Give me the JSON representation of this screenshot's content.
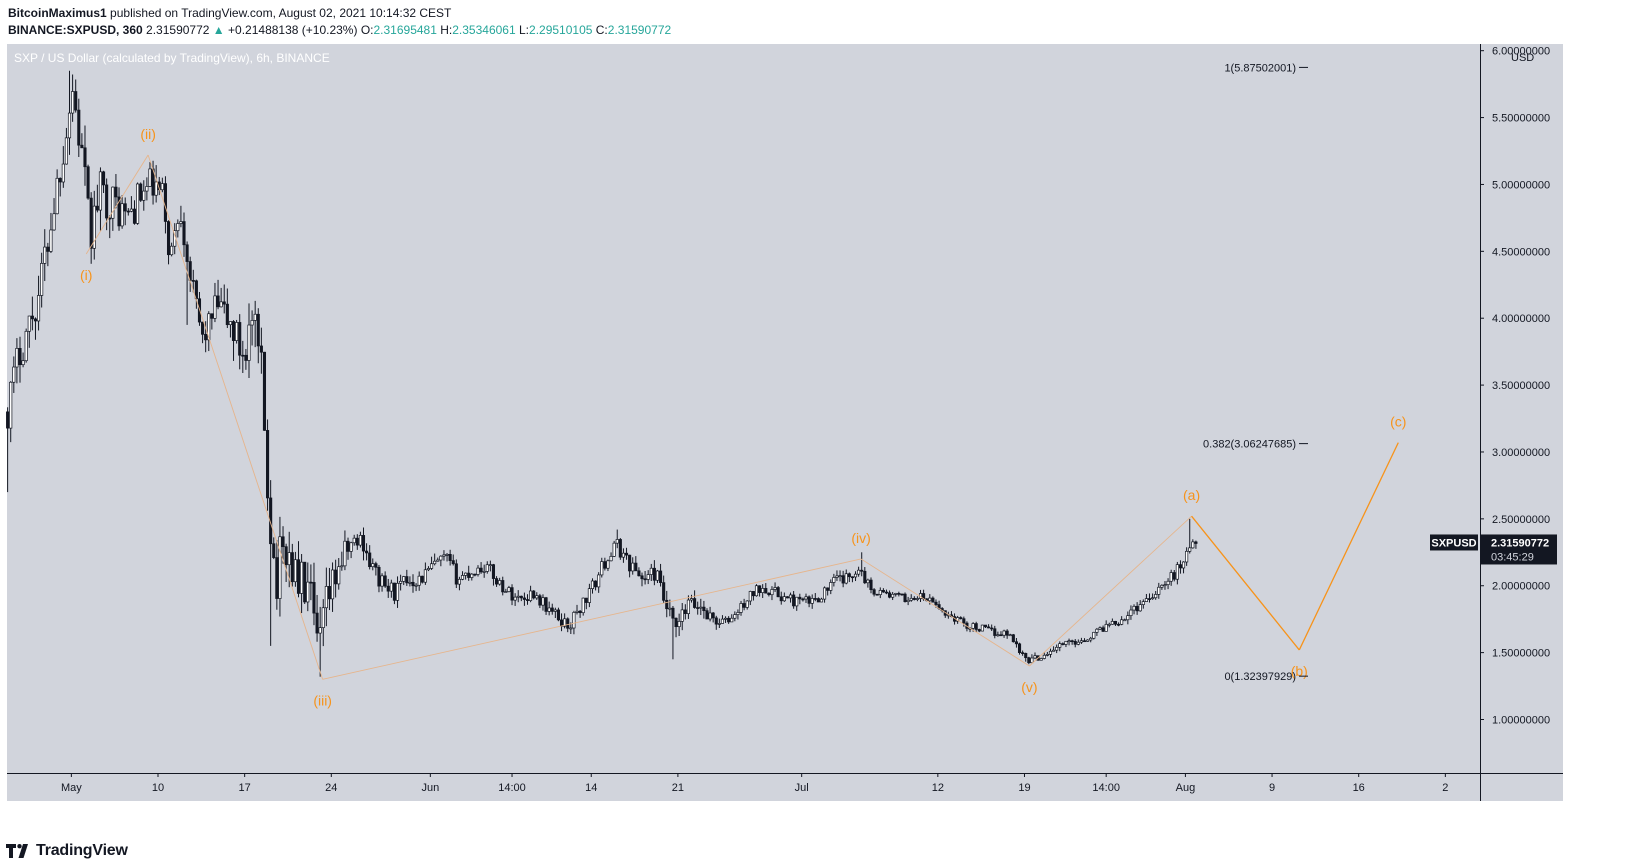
{
  "header": {
    "author": "BitcoinMaximus1",
    "published_text": "published on TradingView.com, August 02, 2021 10:14:32 CEST",
    "symbol": "BINANCE:SXPUSD, 360",
    "last": "2.31590772",
    "change_arrow": "▲",
    "change": "+0.21488138 (+10.23%)",
    "o_label": "O:",
    "o_value": "2.31695481",
    "h_label": "H:",
    "h_value": "2.35346061",
    "l_label": "L:",
    "l_value": "2.29510105",
    "c_label": "C:",
    "c_value": "2.31590772"
  },
  "chart_data": {
    "type": "candlestick",
    "title": "SXP / US Dollar (calculated by TradingView), 6h, BINANCE",
    "currency": "USD",
    "ylim": [
      0.6,
      6.05
    ],
    "y_ticks": [
      "1.00000000",
      "1.50000000",
      "2.00000000",
      "2.50000000",
      "3.00000000",
      "3.50000000",
      "4.00000000",
      "4.50000000",
      "5.00000000",
      "5.50000000",
      "6.00000000"
    ],
    "y_tick_values": [
      1.0,
      1.5,
      2.0,
      2.5,
      3.0,
      3.5,
      4.0,
      4.5,
      5.0,
      5.5,
      6.0
    ],
    "x_ticks": [
      {
        "label": "May",
        "day": 3
      },
      {
        "label": "10",
        "day": 10
      },
      {
        "label": "17",
        "day": 17
      },
      {
        "label": "24",
        "day": 24
      },
      {
        "label": "Jun",
        "day": 32
      },
      {
        "label": "14:00",
        "day": 38.6
      },
      {
        "label": "14",
        "day": 45
      },
      {
        "label": "21",
        "day": 52
      },
      {
        "label": "Jul",
        "day": 62
      },
      {
        "label": "12",
        "day": 73
      },
      {
        "label": "19",
        "day": 80
      },
      {
        "label": "14:00",
        "day": 86.6
      },
      {
        "label": "Aug",
        "day": 93
      },
      {
        "label": "9",
        "day": 100
      },
      {
        "label": "16",
        "day": 107
      },
      {
        "label": "2",
        "day": 114
      }
    ],
    "x_domain_days": [
      -2.2,
      116.8
    ],
    "last_candle_day": 93.9,
    "price_path": [
      [
        -2.2,
        3.3
      ],
      [
        -1.2,
        3.75
      ],
      [
        0.3,
        4.15
      ],
      [
        1.3,
        4.7
      ],
      [
        2.3,
        5.25
      ],
      [
        3.1,
        5.72
      ],
      [
        4,
        5.1
      ],
      [
        4.5,
        4.6
      ],
      [
        5.3,
        4.95
      ],
      [
        6.5,
        4.85
      ],
      [
        7.5,
        4.75
      ],
      [
        8.5,
        4.9
      ],
      [
        9.5,
        5.0
      ],
      [
        10.4,
        4.9
      ],
      [
        11,
        4.45
      ],
      [
        11.8,
        4.85
      ],
      [
        12.8,
        4.2
      ],
      [
        13.6,
        3.85
      ],
      [
        14.8,
        4.1
      ],
      [
        15.8,
        3.95
      ],
      [
        16.8,
        3.75
      ],
      [
        17.6,
        3.95
      ],
      [
        18.3,
        3.6
      ],
      [
        19,
        2.6
      ],
      [
        19.5,
        2.05
      ],
      [
        20.3,
        2.3
      ],
      [
        21.2,
        2.05
      ],
      [
        22.2,
        1.95
      ],
      [
        22.9,
        1.5
      ],
      [
        23.6,
        1.85
      ],
      [
        24.6,
        2.15
      ],
      [
        25.5,
        2.3
      ],
      [
        26.5,
        2.35
      ],
      [
        27.2,
        2.15
      ],
      [
        28.2,
        2.0
      ],
      [
        29.2,
        1.95
      ],
      [
        30.2,
        2.05
      ],
      [
        31.2,
        2.05
      ],
      [
        32.3,
        2.15
      ],
      [
        33.3,
        2.2
      ],
      [
        34.2,
        2.05
      ],
      [
        35.2,
        2.1
      ],
      [
        36.5,
        2.15
      ],
      [
        37.3,
        2.05
      ],
      [
        38.3,
        1.95
      ],
      [
        39.3,
        1.9
      ],
      [
        40.3,
        1.95
      ],
      [
        41.3,
        1.85
      ],
      [
        42.4,
        1.75
      ],
      [
        43.2,
        1.7
      ],
      [
        44.2,
        1.85
      ],
      [
        45.2,
        2.0
      ],
      [
        46.2,
        2.2
      ],
      [
        47.1,
        2.3
      ],
      [
        48.2,
        2.15
      ],
      [
        49.2,
        2.05
      ],
      [
        50.2,
        2.1
      ],
      [
        51,
        1.85
      ],
      [
        51.8,
        1.65
      ],
      [
        52.8,
        1.85
      ],
      [
        53.8,
        1.85
      ],
      [
        54.8,
        1.75
      ],
      [
        55.8,
        1.72
      ],
      [
        56.8,
        1.8
      ],
      [
        57.8,
        1.92
      ],
      [
        58.8,
        2.0
      ],
      [
        59.8,
        1.95
      ],
      [
        60.8,
        1.9
      ],
      [
        61.8,
        1.88
      ],
      [
        62.8,
        1.88
      ],
      [
        63.8,
        1.95
      ],
      [
        64.8,
        2.05
      ],
      [
        65.8,
        2.05
      ],
      [
        66.6,
        2.15
      ],
      [
        67.5,
        1.98
      ],
      [
        68.5,
        1.95
      ],
      [
        69.5,
        1.92
      ],
      [
        70.5,
        1.9
      ],
      [
        71.5,
        1.92
      ],
      [
        72.5,
        1.88
      ],
      [
        73.5,
        1.8
      ],
      [
        74.5,
        1.75
      ],
      [
        75.5,
        1.7
      ],
      [
        76.5,
        1.68
      ],
      [
        77.5,
        1.65
      ],
      [
        78.5,
        1.65
      ],
      [
        79.3,
        1.58
      ],
      [
        80,
        1.45
      ],
      [
        80.8,
        1.45
      ],
      [
        81.8,
        1.5
      ],
      [
        82.8,
        1.55
      ],
      [
        83.8,
        1.58
      ],
      [
        84.8,
        1.6
      ],
      [
        85.8,
        1.65
      ],
      [
        86.8,
        1.72
      ],
      [
        87.8,
        1.75
      ],
      [
        88.8,
        1.82
      ],
      [
        89.8,
        1.9
      ],
      [
        90.8,
        1.98
      ],
      [
        91.8,
        2.05
      ],
      [
        92.6,
        2.15
      ],
      [
        93.3,
        2.3
      ],
      [
        93.9,
        2.32
      ]
    ],
    "volatility": [
      [
        -2.2,
        0.24
      ],
      [
        4,
        0.28
      ],
      [
        10,
        0.22
      ],
      [
        14,
        0.18
      ],
      [
        18.5,
        0.38
      ],
      [
        22.5,
        0.3
      ],
      [
        26,
        0.12
      ],
      [
        40,
        0.08
      ],
      [
        50,
        0.1
      ],
      [
        52,
        0.14
      ],
      [
        56,
        0.07
      ],
      [
        66,
        0.07
      ],
      [
        72,
        0.05
      ],
      [
        80,
        0.05
      ],
      [
        86,
        0.05
      ],
      [
        93.9,
        0.08
      ]
    ],
    "spikes": [
      {
        "day": 2.9,
        "high": 5.85
      },
      {
        "day": 3.1,
        "high": 5.75
      },
      {
        "day": -2.1,
        "low": 2.7
      },
      {
        "day": 12.4,
        "low": 3.95
      },
      {
        "day": 19.2,
        "low": 1.55
      },
      {
        "day": 23.2,
        "low": 1.32
      },
      {
        "day": 51.6,
        "low": 1.45
      },
      {
        "day": 93.4,
        "high": 2.5
      },
      {
        "day": 47.0,
        "high": 2.42
      },
      {
        "day": 66.8,
        "high": 2.25
      }
    ],
    "wave_path_solid": [
      [
        4.2,
        4.48
      ],
      [
        9.2,
        5.22
      ],
      [
        23.3,
        1.3
      ],
      [
        66.8,
        2.2
      ],
      [
        80.4,
        1.4
      ],
      [
        93.5,
        2.52
      ],
      [
        102.2,
        1.52
      ],
      [
        110.2,
        3.07
      ]
    ],
    "wave_path_solid_start_index": 5,
    "wave_labels": [
      {
        "label": "(i)",
        "day": 4.2,
        "price": 4.48,
        "pos": "below"
      },
      {
        "label": "(ii)",
        "day": 9.2,
        "price": 5.22,
        "pos": "above"
      },
      {
        "label": "(iii)",
        "day": 23.3,
        "price": 1.3,
        "pos": "below"
      },
      {
        "label": "(iv)",
        "day": 66.8,
        "price": 2.2,
        "pos": "above"
      },
      {
        "label": "(v)",
        "day": 80.4,
        "price": 1.4,
        "pos": "below"
      },
      {
        "label": "(a)",
        "day": 93.5,
        "price": 2.52,
        "pos": "above"
      },
      {
        "label": "(b)",
        "day": 102.2,
        "price": 1.52,
        "pos": "below"
      },
      {
        "label": "(c)",
        "day": 110.2,
        "price": 3.07,
        "pos": "above"
      }
    ],
    "fib_levels": [
      {
        "label": "1(5.87502001)",
        "price": 5.87502001
      },
      {
        "label": "0.382(3.06247685)",
        "price": 3.06247685
      },
      {
        "label": "0(1.32397929)",
        "price": 1.32397929
      }
    ],
    "current_price_label": {
      "symbol": "SXPUSD",
      "price": "2.31590772",
      "countdown": "03:45:29",
      "value": 2.31590772
    },
    "colors": {
      "background": "#d1d4dc",
      "candle": "#131722",
      "wave": "#f7931a",
      "wave_faint": "#e6b58c",
      "axis_text": "#131722",
      "title_text": "#ffffff"
    }
  },
  "footer": {
    "brand": "TradingView"
  }
}
